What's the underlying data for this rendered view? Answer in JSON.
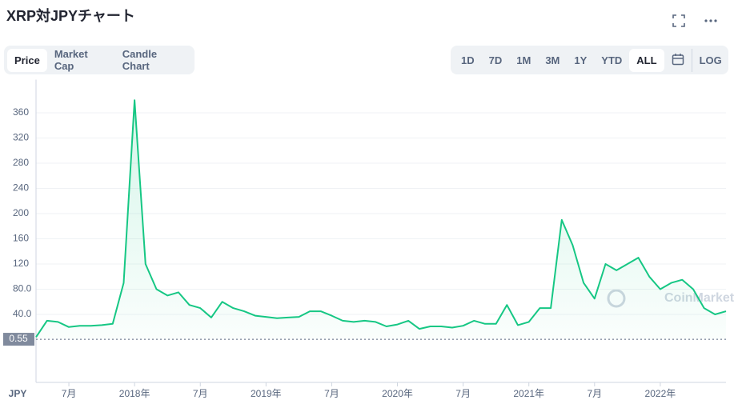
{
  "header": {
    "title": "XRP対JPYチャート",
    "tabs": [
      "Price",
      "Market Cap",
      "Candle Chart"
    ],
    "ranges": [
      "1D",
      "7D",
      "1M",
      "3M",
      "1Y",
      "YTD",
      "ALL"
    ],
    "log": "LOG"
  },
  "chart_data": {
    "type": "line",
    "currency": "JPY",
    "watermark": "CoinMarketCap",
    "last_price": 0.55,
    "x": [
      "2017-04",
      "2017-05",
      "2017-06",
      "2017-07",
      "2017-08",
      "2017-09",
      "2017-10",
      "2017-11",
      "2017-12",
      "2018-01",
      "2018-02",
      "2018-03",
      "2018-04",
      "2018-05",
      "2018-06",
      "2018-07",
      "2018-08",
      "2018-09",
      "2018-10",
      "2018-11",
      "2018-12",
      "2019-01",
      "2019-02",
      "2019-03",
      "2019-04",
      "2019-05",
      "2019-06",
      "2019-07",
      "2019-08",
      "2019-09",
      "2019-10",
      "2019-11",
      "2019-12",
      "2020-01",
      "2020-02",
      "2020-03",
      "2020-04",
      "2020-05",
      "2020-06",
      "2020-07",
      "2020-08",
      "2020-09",
      "2020-10",
      "2020-11",
      "2020-12",
      "2021-01",
      "2021-02",
      "2021-03",
      "2021-04",
      "2021-05",
      "2021-06",
      "2021-07",
      "2021-08",
      "2021-09",
      "2021-10",
      "2021-11",
      "2021-12",
      "2022-01",
      "2022-02",
      "2022-03",
      "2022-04",
      "2022-05",
      "2022-06",
      "2022-07"
    ],
    "series": [
      {
        "color": "#16c784",
        "values": [
          4,
          30,
          28,
          20,
          22,
          22,
          23,
          25,
          90,
          380,
          120,
          80,
          70,
          75,
          55,
          50,
          35,
          60,
          50,
          45,
          38,
          36,
          34,
          35,
          36,
          45,
          45,
          38,
          30,
          28,
          30,
          28,
          21,
          24,
          30,
          17,
          21,
          21,
          19,
          22,
          30,
          25,
          25,
          55,
          23,
          28,
          50,
          50,
          190,
          150,
          90,
          65,
          120,
          110,
          120,
          130,
          100,
          80,
          90,
          95,
          80,
          50,
          40,
          45
        ]
      }
    ],
    "xlim": [
      "2017-04",
      "2022-07"
    ],
    "xticks": [
      {
        "value": "2017-07",
        "label": "7月"
      },
      {
        "value": "2018-01",
        "label": "2018年"
      },
      {
        "value": "2018-07",
        "label": "7月"
      },
      {
        "value": "2019-01",
        "label": "2019年"
      },
      {
        "value": "2019-07",
        "label": "7月"
      },
      {
        "value": "2020-01",
        "label": "2020年"
      },
      {
        "value": "2020-07",
        "label": "7月"
      },
      {
        "value": "2021-01",
        "label": "2021年"
      },
      {
        "value": "2021-07",
        "label": "7月"
      },
      {
        "value": "2022-01",
        "label": "2022年"
      }
    ],
    "ylim": [
      0,
      400
    ],
    "yticks": [
      {
        "value": 40,
        "label": "40.0"
      },
      {
        "value": 80,
        "label": "80.0"
      },
      120,
      160,
      200,
      240,
      280,
      320,
      360
    ],
    "grid": true
  }
}
